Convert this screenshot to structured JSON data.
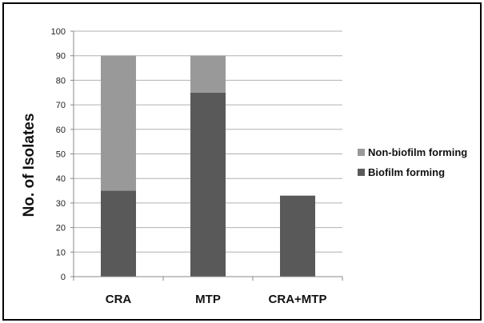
{
  "chart_data": {
    "type": "bar",
    "stacked": true,
    "title": "",
    "xlabel": "",
    "ylabel": "No. of Isolates",
    "ylim": [
      0,
      100
    ],
    "yticks": [
      0,
      10,
      20,
      30,
      40,
      50,
      60,
      70,
      80,
      90,
      100
    ],
    "grid": true,
    "legend_position": "right",
    "categories": [
      "CRA",
      "MTP",
      "CRA+MTP"
    ],
    "series": [
      {
        "name": "Biofilm forming",
        "color": "#595959",
        "values": [
          35,
          75,
          33
        ]
      },
      {
        "name": "Non-biofilm forming",
        "color": "#999999",
        "values": [
          55,
          15,
          0
        ]
      }
    ],
    "legend": [
      "Non-biofilm forming",
      "Biofilm forming"
    ]
  }
}
